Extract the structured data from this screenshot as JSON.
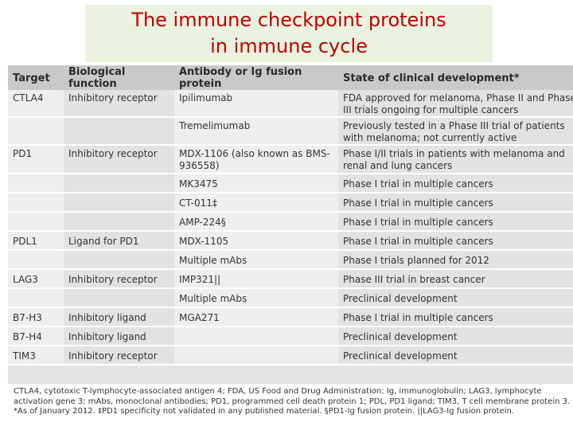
{
  "title": {
    "line1": "The immune checkpoint proteins",
    "line2": "in immune cycle"
  },
  "table": {
    "headers": [
      "Target",
      "Biological function",
      "Antibody or Ig fusion protein",
      "State of clinical development*"
    ],
    "rows": [
      {
        "target": "CTLA4",
        "function": "Inhibitory receptor",
        "antibody": "Ipilimumab",
        "state": "FDA approved for melanoma, Phase II and Phase III trials ongoing for multiple cancers"
      },
      {
        "target": "",
        "function": "",
        "antibody": "Tremelimumab",
        "state": "Previously tested in a Phase III trial of patients with melanoma; not currently active"
      },
      {
        "target": "PD1",
        "function": "Inhibitory receptor",
        "antibody": "MDX-1106 (also known as BMS-936558)",
        "state": "Phase I/II trials in patients with melanoma and renal and lung cancers"
      },
      {
        "target": "",
        "function": "",
        "antibody": "MK3475",
        "state": "Phase I trial in multiple cancers"
      },
      {
        "target": "",
        "function": "",
        "antibody": "CT-011‡",
        "state": "Phase I trial in multiple cancers"
      },
      {
        "target": "",
        "function": "",
        "antibody": "AMP-224§",
        "state": "Phase I trial in multiple cancers"
      },
      {
        "target": "PDL1",
        "function": "Ligand for PD1",
        "antibody": "MDX-1105",
        "state": "Phase I trial in multiple cancers"
      },
      {
        "target": "",
        "function": "",
        "antibody": "Multiple mAbs",
        "state": "Phase I trials planned for 2012"
      },
      {
        "target": "LAG3",
        "function": "Inhibitory receptor",
        "antibody": "IMP321||",
        "state": "Phase III trial in breast cancer"
      },
      {
        "target": "",
        "function": "",
        "antibody": "Multiple mAbs",
        "state": "Preclinical development"
      },
      {
        "target": "B7-H3",
        "function": "Inhibitory ligand",
        "antibody": "MGA271",
        "state": "Phase I trial in multiple cancers"
      },
      {
        "target": "B7-H4",
        "function": "Inhibitory ligand",
        "antibody": "",
        "state": "Preclinical development"
      },
      {
        "target": "TIM3",
        "function": "Inhibitory receptor",
        "antibody": "",
        "state": "Preclinical development"
      }
    ]
  },
  "footnote": "CTLA4, cytotoxic T-lymphocyte-associated antigen 4; FDA, US Food and Drug Administration; Ig, immunoglobulin; LAG3, lymphocyte activation gene 3; mAbs, monoclonal antibodies; PD1, programmed cell death protein 1; PDL, PD1 ligand; TIM3, T cell membrane protein 3. *As of January 2012. ‡PD1 specificity not validated in any published material. §PD1-Ig fusion protein. ||LAG3-Ig fusion protein.",
  "colors": {
    "title": "#c00000",
    "title_background": "#eaf3df",
    "header_background": "#c9c9c9"
  }
}
